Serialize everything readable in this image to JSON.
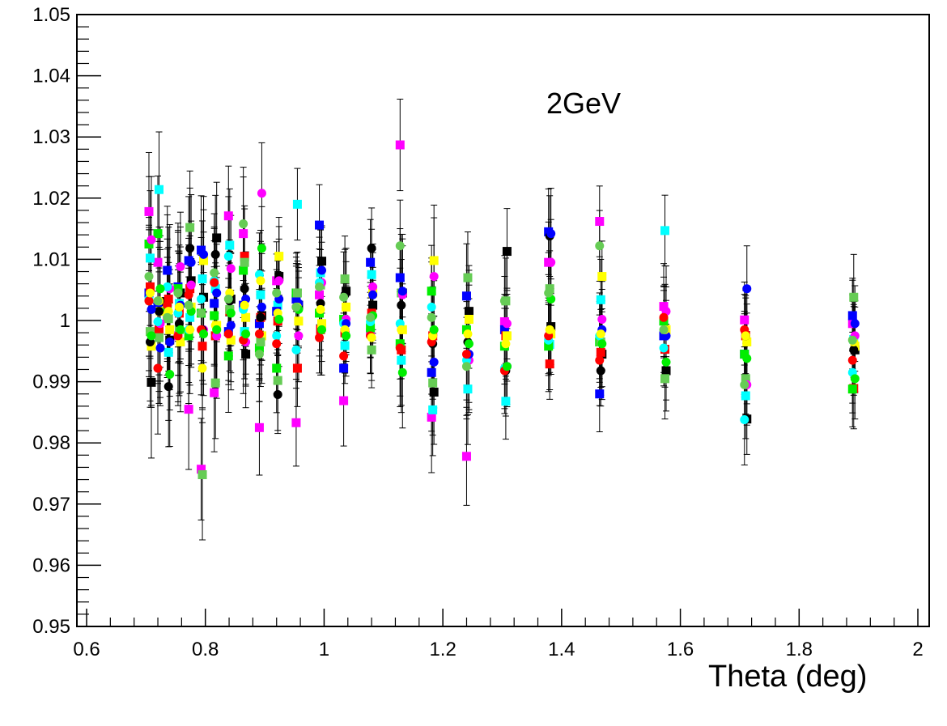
{
  "chart_data": {
    "type": "scatter",
    "title": "",
    "xlabel": "Theta (deg)",
    "ylabel": "",
    "annotation": "2GeV",
    "xlim": [
      0.6,
      2.0
    ],
    "ylim": [
      0.95,
      1.05
    ],
    "x_ticks": [
      "0.6",
      "0.8",
      "1",
      "1.2",
      "1.4",
      "1.6",
      "1.8",
      "2"
    ],
    "y_ticks": [
      "0.95",
      "0.96",
      "0.97",
      "0.98",
      "0.99",
      "1",
      "1.01",
      "1.02",
      "1.03",
      "1.04",
      "1.05"
    ],
    "grid": false,
    "legend": "none",
    "x": [
      0.707,
      0.722,
      0.738,
      0.756,
      0.774,
      0.795,
      0.817,
      0.841,
      0.866,
      0.893,
      0.922,
      0.955,
      0.994,
      1.035,
      1.08,
      1.13,
      1.183,
      1.242,
      1.306,
      1.38,
      1.466,
      1.574,
      1.71,
      1.892
    ],
    "series": [
      {
        "color": "#ff00ff",
        "marker": "square",
        "values": [
          1.0178,
          1.0095,
          1.0005,
          0.9975,
          0.9855,
          0.9757,
          0.9882,
          1.0171,
          1.0142,
          0.9825,
          1.0065,
          0.9833,
          1.0042,
          0.9869,
          0.998,
          1.0287,
          0.9842,
          0.9778,
          0.9998,
          1.0095,
          1.0162,
          1.0023,
          1.0001,
          0.9995
        ]
      },
      {
        "color": "#00ffff",
        "marker": "square",
        "values": [
          1.0102,
          1.0214,
          0.9948,
          1.0028,
          1.0005,
          1.0068,
          1.0052,
          1.0123,
          0.9982,
          1.0042,
          1.0025,
          1.019,
          1.0078,
          0.9959,
          1.0075,
          0.9935,
          0.9854,
          0.9888,
          0.9868,
          0.9961,
          1.0034,
          1.0147,
          0.9877,
          0.9969
        ]
      },
      {
        "color": "#000000",
        "marker": "square",
        "values": [
          0.9899,
          1.0031,
          0.9968,
          1.0045,
          1.0065,
          1.0038,
          1.0135,
          1.0035,
          0.9945,
          1.0008,
          1.0072,
          1.0025,
          1.0097,
          1.0048,
          1.0025,
          1.0045,
          0.9883,
          1.0015,
          1.0113,
          0.999,
          0.9945,
          0.9918,
          0.9839,
          0.9952
        ]
      },
      {
        "color": "#0000ff",
        "marker": "square",
        "values": [
          1.0045,
          1.0022,
          1.0082,
          1.0055,
          1.0098,
          1.0115,
          1.0028,
          0.9982,
          1.0025,
          0.9995,
          1.0015,
          1.0035,
          1.0156,
          0.9922,
          1.0095,
          1.007,
          0.9915,
          1.004,
          0.9985,
          1.0145,
          0.988,
          0.9975,
          0.9945,
          1.0008
        ]
      },
      {
        "color": "#ff0000",
        "marker": "square",
        "values": [
          1.0055,
          0.9985,
          1.0035,
          1.0012,
          1.0052,
          0.9958,
          0.9975,
          1.0015,
          1.0105,
          1.0005,
          0.9999,
          0.9922,
          0.9985,
          0.998,
          1.0012,
          0.9952,
          0.9975,
          0.9942,
          0.9975,
          0.9929,
          0.9948,
          0.9953,
          0.9975,
          0.9889
        ]
      },
      {
        "color": "#ffff00",
        "marker": "square",
        "values": [
          0.9958,
          1.0015,
          0.9985,
          0.9965,
          1.0022,
          1.0098,
          0.9992,
          0.9968,
          1.0005,
          0.9975,
          1.0105,
          0.9999,
          0.9995,
          1.0022,
          1.0045,
          0.9985,
          1.0098,
          1.0002,
          0.9975,
          0.9978,
          1.0072,
          0.9985,
          0.9965,
          0.9958
        ]
      },
      {
        "color": "#00ee00",
        "marker": "square",
        "values": [
          1.0125,
          1.0142,
          1.0022,
          1.0052,
          0.9975,
          1.0012,
          1.0008,
          0.9942,
          1.0082,
          0.9955,
          0.9922,
          1.0045,
          1.0012,
          1.0002,
          0.9988,
          0.9962,
          1.0048,
          0.9985,
          0.9958,
          0.9958,
          0.9965,
          0.9999,
          0.9945,
          0.9888
        ]
      },
      {
        "color": "#66cc55",
        "marker": "square",
        "values": [
          0.9982,
          0.9972,
          1.0003,
          0.9985,
          1.0152,
          0.9748,
          0.9898,
          1.0018,
          1.0095,
          0.9965,
          0.9902,
          1.0045,
          1.0058,
          1.0068,
          0.9952,
          1.0045,
          0.9898,
          1.007,
          1.0032,
          1.0052,
          0.9965,
          0.9905,
          0.9905,
          1.0038
        ]
      },
      {
        "color": "#ff00ff",
        "marker": "circle",
        "values": [
          1.0132,
          0.9995,
          1.0052,
          1.0088,
          1.0058,
          0.9985,
          0.9975,
          1.0085,
          0.9965,
          1.0208,
          1.0065,
          0.9975,
          1.0062,
          1.0002,
          1.0055,
          1.0042,
          1.0072,
          0.9935,
          0.9995,
          1.0095,
          1.0002,
          1.0015,
          0.9895,
          0.9975
        ]
      },
      {
        "color": "#00ffff",
        "marker": "circle",
        "values": [
          1.0035,
          0.9998,
          1.0055,
          1.0012,
          0.9985,
          1.0035,
          1.0065,
          1.0105,
          1.0018,
          1.0075,
          0.9975,
          0.9952,
          1.0062,
          0.9995,
          0.9998,
          0.9995,
          1.0022,
          0.9935,
          0.9922,
          0.9968,
          0.9975,
          0.9955,
          0.9838,
          0.9915
        ]
      },
      {
        "color": "#000000",
        "marker": "circle",
        "values": [
          0.9965,
          1.0015,
          0.9892,
          0.9995,
          1.0118,
          0.9985,
          1.0108,
          1.0032,
          1.0052,
          1.0005,
          0.9879,
          1.0022,
          1.0028,
          1.0042,
          1.0118,
          1.0025,
          0.9962,
          0.9965,
          0.9918,
          1.0138,
          0.9918,
          0.9985,
          0.9975,
          0.9952
        ]
      },
      {
        "color": "#0000ff",
        "marker": "circle",
        "values": [
          1.0018,
          0.9955,
          0.9965,
          1.0025,
          1.0095,
          1.0108,
          1.0045,
          0.9992,
          1.0035,
          1.0022,
          1.0035,
          1.0028,
          1.0082,
          0.9995,
          1.0042,
          1.0048,
          0.9932,
          0.9945,
          0.9925,
          1.0142,
          0.9985,
          0.9975,
          1.0052,
          0.9995
        ]
      },
      {
        "color": "#ff0000",
        "marker": "circle",
        "values": [
          1.0032,
          0.9922,
          1.0025,
          0.9975,
          1.0042,
          0.9985,
          1.0062,
          0.9978,
          0.9968,
          0.9978,
          0.9962,
          1.0022,
          0.9972,
          0.9942,
          0.9975,
          0.9955,
          0.9965,
          0.9945,
          0.9918,
          0.9975,
          0.9935,
          1.0005,
          0.9985,
          0.9935
        ]
      },
      {
        "color": "#ffff00",
        "marker": "circle",
        "values": [
          1.0045,
          1.0032,
          1.0015,
          1.0022,
          0.9985,
          0.9922,
          0.9992,
          1.0045,
          1.0025,
          1.0065,
          1.0012,
          1.0022,
          1.0018,
          0.9985,
          0.9972,
          0.9985,
          0.9975,
          0.9978,
          0.9962,
          0.9985,
          0.9978,
          0.9985,
          0.9975,
          0.9965
        ]
      },
      {
        "color": "#00ee00",
        "marker": "circle",
        "values": [
          0.9975,
          1.0052,
          0.9912,
          0.9985,
          1.0015,
          0.9978,
          0.9985,
          1.0012,
          0.9978,
          1.0118,
          1.0002,
          1.0018,
          0.9985,
          0.9975,
          1.0008,
          0.9915,
          0.9985,
          0.9962,
          0.9925,
          1.0035,
          0.9962,
          0.9932,
          0.9938,
          0.9905
        ]
      },
      {
        "color": "#66cc55",
        "marker": "circle",
        "values": [
          1.0072,
          1.0032,
          1.0005,
          1.0045,
          1.0025,
          1.0012,
          1.0078,
          1.0035,
          1.0158,
          0.9945,
          1.0045,
          1.0022,
          1.0055,
          1.0038,
          1.0005,
          1.0122,
          1.0005,
          0.9925,
          1.0032,
          1.0045,
          1.0122,
          0.9985,
          0.9895,
          0.9968
        ]
      }
    ]
  }
}
